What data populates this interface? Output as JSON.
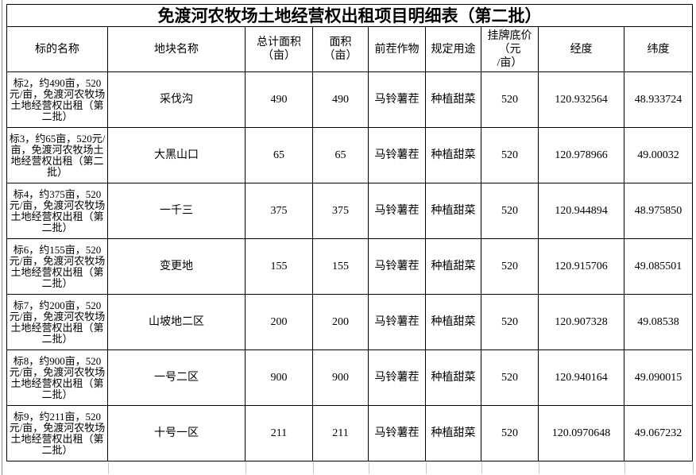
{
  "page": {
    "background": "#ffffff",
    "border_color": "#000000",
    "gridline_color": "#c6c6c6"
  },
  "title": "免渡河农牧场土地经营权出租项目明细表（第二批）",
  "table": {
    "columns": [
      "标的名称",
      "地块名称",
      "总计面积\n（亩）",
      "面积\n（亩）",
      "前茬作物",
      "规定用途",
      "挂牌底价\n（元\n/亩）",
      "经度",
      "纬度"
    ],
    "rows": [
      [
        "标2，约490亩，520元/亩，免渡河农牧场土地经营权出租（第二批）",
        "采伐沟",
        "490",
        "490",
        "马铃薯茬",
        "种植甜菜",
        "520",
        "120.932564",
        "48.933724"
      ],
      [
        "标3，约65亩，520元/亩，免渡河农牧场土地经营权出租（第二批）",
        "大黑山口",
        "65",
        "65",
        "马铃薯茬",
        "种植甜菜",
        "520",
        "120.978966",
        "49.00032"
      ],
      [
        "标4，约375亩，520元/亩，免渡河农牧场土地经营权出租（第二批）",
        "一千三",
        "375",
        "375",
        "马铃薯茬",
        "种植甜菜",
        "520",
        "120.944894",
        "48.975850"
      ],
      [
        "标6，约155亩，520元/亩，免渡河农牧场土地经营权出租（第二批）",
        "变更地",
        "155",
        "155",
        "马铃薯茬",
        "种植甜菜",
        "520",
        "120.915706",
        "49.085501"
      ],
      [
        "标7，约200亩，520元/亩，免渡河农牧场土地经营权出租（第二批）",
        "山坡地二区",
        "200",
        "200",
        "马铃薯茬",
        "种植甜菜",
        "520",
        "120.907328",
        "49.08538"
      ],
      [
        "标8，约900亩，520元/亩，免渡河农牧场土地经营权出租（第二批）",
        "一号二区",
        "900",
        "900",
        "马铃薯茬",
        "种植甜菜",
        "520",
        "120.940164",
        "49.090015"
      ],
      [
        "标9，约211亩，520元/亩，免渡河农牧场土地经营权出租（第二批）",
        "十号一区",
        "211",
        "211",
        "马铃薯茬",
        "种植甜菜",
        "520",
        "120.0970648",
        "49.067232"
      ]
    ]
  }
}
